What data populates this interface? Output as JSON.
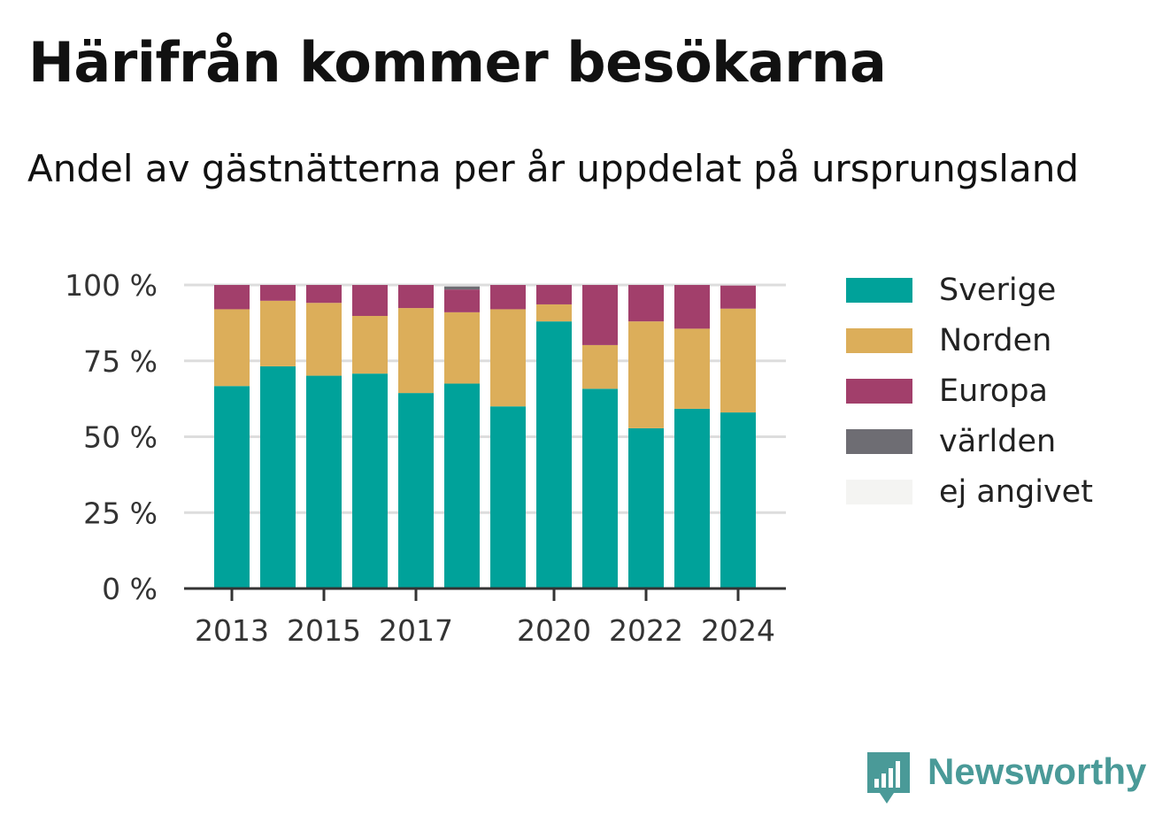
{
  "header": {
    "title": "Härifrån kommer besökarna",
    "subtitle": "Andel av gästnätterna per år uppdelat på ursprungsland"
  },
  "brand": {
    "name": "Newsworthy",
    "logo_icon": "bar-chart-speech-bubble-icon",
    "color": "#4a9a98"
  },
  "chart_data": {
    "type": "bar",
    "stacked": true,
    "categories": [
      "2013",
      "2014",
      "2015",
      "2016",
      "2017",
      "2018",
      "2019",
      "2020",
      "2021",
      "2022",
      "2023",
      "2024"
    ],
    "x_tick_labels": [
      "2013",
      "",
      "2015",
      "",
      "2017",
      "",
      "",
      "2020",
      "",
      "2022",
      "",
      "2024"
    ],
    "series": [
      {
        "name": "Sverige",
        "color": "#00a29a",
        "values": [
          66.7,
          73.2,
          70.1,
          70.8,
          64.4,
          67.5,
          60.0,
          88.0,
          65.8,
          52.8,
          59.2,
          58.0
        ]
      },
      {
        "name": "Norden",
        "color": "#dcae5a",
        "values": [
          25.3,
          21.6,
          24.0,
          19.0,
          28.0,
          23.5,
          32.0,
          5.6,
          14.4,
          35.2,
          26.4,
          34.2
        ]
      },
      {
        "name": "Europa",
        "color": "#a23f6b",
        "values": [
          8.0,
          5.2,
          5.9,
          10.2,
          7.6,
          7.5,
          8.0,
          6.4,
          19.8,
          12.0,
          14.4,
          7.6
        ]
      },
      {
        "name": "världen",
        "color": "#6e6d73",
        "values": [
          0,
          0,
          0,
          0,
          0,
          1.0,
          0,
          0,
          0,
          0,
          0,
          0
        ]
      },
      {
        "name": "ej angivet",
        "color": "#f4f4f2",
        "values": [
          0,
          0,
          0,
          0,
          0,
          0,
          0,
          0,
          0,
          0,
          0,
          0
        ]
      }
    ],
    "y_ticks": [
      0,
      25,
      50,
      75,
      100
    ],
    "y_tick_labels": [
      "0 %",
      "25 %",
      "50 %",
      "75 %",
      "100 %"
    ],
    "ylim": [
      0,
      100
    ],
    "grid": true,
    "legend_position": "right"
  }
}
